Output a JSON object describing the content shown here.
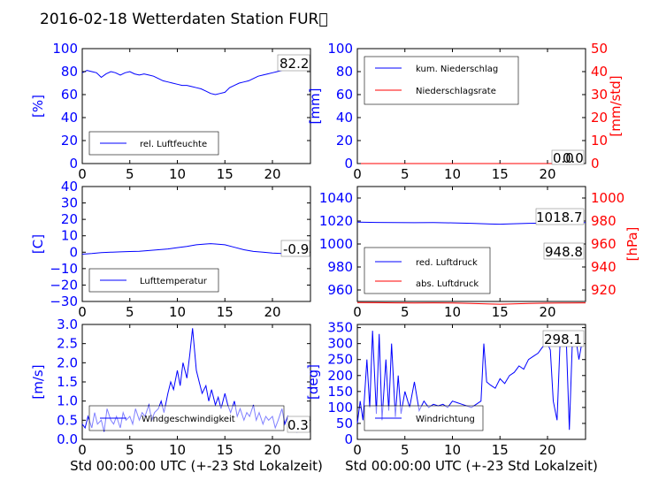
{
  "header": {
    "title": "2016-02-18 Wetterdaten Station FUR\u0000"
  },
  "colors": {
    "primary": "#0000ff",
    "secondary": "#ff0000",
    "frame": "#000000"
  },
  "chart_data": [
    {
      "type": "line",
      "ylabel": "[%]",
      "ylim": [
        0,
        100
      ],
      "yticks": [
        "0",
        "20",
        "40",
        "60",
        "80",
        "100"
      ],
      "xlim": [
        0,
        24
      ],
      "xticks": [
        "0",
        "5",
        "10",
        "15",
        "20"
      ],
      "legend": [
        "rel. Luftfeuchte"
      ],
      "annotation": "82.2",
      "series": [
        {
          "name": "rel. Luftfeuchte",
          "color": "#0000ff",
          "x": [
            0,
            0.5,
            1,
            1.5,
            2,
            2.5,
            3,
            3.5,
            4,
            4.5,
            5,
            5.5,
            6,
            6.5,
            7,
            7.5,
            8,
            8.5,
            9,
            9.5,
            10,
            10.5,
            11,
            11.5,
            12,
            12.5,
            13,
            13.5,
            14,
            14.5,
            15,
            15.5,
            16,
            16.5,
            17,
            17.5,
            18,
            18.5,
            19,
            19.5,
            20,
            20.5,
            21,
            21.5,
            22,
            22.5,
            23,
            23.5
          ],
          "y": [
            79,
            81,
            80,
            79,
            75,
            78,
            80,
            79,
            77,
            79,
            80,
            78,
            77,
            78,
            77,
            76,
            74,
            72,
            71,
            70,
            69,
            68,
            68,
            67,
            66,
            65,
            63,
            61,
            60,
            61,
            62,
            66,
            68,
            70,
            71,
            72,
            74,
            76,
            77,
            78,
            79,
            80,
            81,
            82,
            82,
            82,
            82,
            82
          ]
        }
      ]
    },
    {
      "type": "line",
      "ylabel": "[mm]",
      "ylabel2": "[mm/std]",
      "ylim": [
        0,
        100
      ],
      "ylim2": [
        0,
        50
      ],
      "yticks": [
        "0",
        "20",
        "40",
        "60",
        "80",
        "100"
      ],
      "yticks2": [
        "0",
        "10",
        "20",
        "30",
        "40",
        "50"
      ],
      "xlim": [
        0,
        24
      ],
      "xticks": [
        "0",
        "5",
        "10",
        "15",
        "20"
      ],
      "legend": [
        "kum. Niederschlag",
        "Niederschlagsrate"
      ],
      "annotation": "0.0",
      "annotation2": "0.0",
      "series": [
        {
          "name": "kum. Niederschlag",
          "color": "#0000ff",
          "x": [
            0,
            24
          ],
          "y": [
            0,
            0
          ]
        },
        {
          "name": "Niederschlagsrate",
          "color": "#ff0000",
          "x": [
            0,
            24
          ],
          "y": [
            0,
            0
          ]
        }
      ]
    },
    {
      "type": "line",
      "ylabel": "[C]",
      "ylim": [
        -30,
        40
      ],
      "yticks": [
        "−30",
        "−20",
        "−10",
        "0",
        "10",
        "20",
        "30",
        "40"
      ],
      "xlim": [
        0,
        24
      ],
      "xticks": [
        "0",
        "5",
        "10",
        "15",
        "20"
      ],
      "legend": [
        "Lufttemperatur"
      ],
      "annotation": "-0.9",
      "series": [
        {
          "name": "Lufttemperatur",
          "color": "#0000ff",
          "x": [
            0,
            1,
            2,
            3,
            4,
            5,
            6,
            7,
            8,
            9,
            10,
            11,
            12,
            13,
            13.5,
            14,
            15,
            16,
            17,
            18,
            19,
            20,
            21,
            22,
            23,
            23.8
          ],
          "y": [
            -1.2,
            -0.8,
            -0.2,
            0,
            0.2,
            0.4,
            0.6,
            1.0,
            1.5,
            2.0,
            2.8,
            3.5,
            4.5,
            5.0,
            5.2,
            5.0,
            4.5,
            3.0,
            1.5,
            0.5,
            0,
            -0.5,
            -0.8,
            -0.9,
            -0.9,
            -0.9
          ]
        }
      ]
    },
    {
      "type": "line",
      "ylabel": "",
      "ylabel2": "[hPa]",
      "ylim": [
        950,
        1050
      ],
      "ylim2": [
        910,
        1010
      ],
      "yticks": [
        "960",
        "980",
        "1000",
        "1020",
        "1040"
      ],
      "yticks2": [
        "920",
        "940",
        "960",
        "980",
        "1000"
      ],
      "xlim": [
        0,
        24
      ],
      "xticks": [
        "0",
        "5",
        "10",
        "15",
        "20"
      ],
      "legend": [
        "red. Luftdruck",
        "abs. Luftdruck"
      ],
      "annotation": "1018.7",
      "annotation2": "948.8",
      "series": [
        {
          "name": "red. Luftdruck",
          "color": "#0000ff",
          "x": [
            0,
            2,
            4,
            6,
            8,
            10,
            12,
            14,
            15,
            16,
            18,
            20,
            22,
            24
          ],
          "y": [
            1019,
            1018.8,
            1018.6,
            1018.5,
            1018.6,
            1018.4,
            1018,
            1017.4,
            1017.2,
            1017.5,
            1018,
            1018.3,
            1018.6,
            1018.7
          ]
        },
        {
          "name": "abs. Luftdruck",
          "color": "#ff0000",
          "x": [
            0,
            2,
            4,
            6,
            8,
            10,
            12,
            14,
            15,
            16,
            18,
            20,
            22,
            24
          ],
          "y": [
            949,
            948.9,
            948.8,
            948.7,
            948.8,
            948.6,
            948.3,
            947.8,
            947.6,
            947.8,
            948.2,
            948.5,
            948.7,
            948.8
          ]
        }
      ]
    },
    {
      "type": "line",
      "ylabel": "[m/s]",
      "ylim": [
        0,
        3
      ],
      "yticks": [
        "0.0",
        "0.5",
        "1.0",
        "1.5",
        "2.0",
        "2.5",
        "3.0"
      ],
      "xlim": [
        0,
        24
      ],
      "xticks": [
        "0",
        "5",
        "10",
        "15",
        "20"
      ],
      "xlabel": "Std 00:00:00 UTC (+-23 Std Lokalzeit)",
      "legend": [
        "Windgeschwindigkeit"
      ],
      "annotation": "0.3",
      "series": [
        {
          "name": "Windgeschwindigkeit",
          "color": "#0000ff",
          "x": [
            0,
            0.3,
            0.6,
            1,
            1.3,
            1.6,
            2,
            2.3,
            2.6,
            3,
            3.3,
            3.6,
            4,
            4.3,
            4.6,
            5,
            5.3,
            5.6,
            6,
            6.3,
            6.6,
            7,
            7.3,
            7.6,
            8,
            8.3,
            8.6,
            9,
            9.3,
            9.6,
            10,
            10.3,
            10.6,
            11,
            11.3,
            11.6,
            12,
            12.3,
            12.6,
            13,
            13.3,
            13.6,
            14,
            14.3,
            14.6,
            15,
            15.3,
            15.6,
            16,
            16.3,
            16.6,
            17,
            17.3,
            17.6,
            18,
            18.3,
            18.6,
            19,
            19.3,
            19.6,
            20,
            20.3,
            20.6,
            21,
            21.3,
            21.6,
            22,
            22.3,
            22.6,
            23,
            23.3,
            23.6
          ],
          "y": [
            0.4,
            0.3,
            0.6,
            0.3,
            0.7,
            0.4,
            0.5,
            0.2,
            0.8,
            0.5,
            0.4,
            0.6,
            0.3,
            0.7,
            0.5,
            0.6,
            0.4,
            0.8,
            0.5,
            0.7,
            0.6,
            0.9,
            0.5,
            0.7,
            0.8,
            1.0,
            0.7,
            1.2,
            1.5,
            1.3,
            1.8,
            1.4,
            2.0,
            1.6,
            2.2,
            2.9,
            1.8,
            1.5,
            1.2,
            1.4,
            1.0,
            1.3,
            0.9,
            1.1,
            0.8,
            1.2,
            0.9,
            0.7,
            1.0,
            0.6,
            0.8,
            0.5,
            0.7,
            0.6,
            0.9,
            0.5,
            0.7,
            0.4,
            0.6,
            0.5,
            0.6,
            0.3,
            0.5,
            0.8,
            0.4,
            0.6,
            0.3,
            0.5,
            0.2,
            0.4,
            0.3,
            0.3
          ]
        }
      ]
    },
    {
      "type": "line",
      "ylabel": "[deg]",
      "ylim": [
        0,
        360
      ],
      "yticks": [
        "0",
        "50",
        "100",
        "150",
        "200",
        "250",
        "300",
        "350"
      ],
      "xlim": [
        0,
        24
      ],
      "xticks": [
        "0",
        "5",
        "10",
        "15",
        "20"
      ],
      "xlabel": "Std 00:00:00 UTC (+-23 Std Lokalzeit)",
      "legend": [
        "Windrichtung"
      ],
      "annotation": "298.1",
      "series": [
        {
          "name": "Windrichtung",
          "color": "#0000ff",
          "x": [
            0,
            0.3,
            0.6,
            1,
            1.3,
            1.6,
            2,
            2.3,
            2.6,
            3,
            3.3,
            3.6,
            4,
            4.3,
            4.6,
            5,
            5.5,
            6,
            6.5,
            7,
            7.5,
            8,
            8.5,
            9,
            9.5,
            10,
            10.5,
            11,
            11.5,
            12,
            12.5,
            13,
            13.3,
            13.6,
            14,
            14.5,
            15,
            15.5,
            16,
            16.5,
            17,
            17.5,
            18,
            18.5,
            19,
            19.5,
            20,
            20.3,
            20.6,
            21,
            21.3,
            21.6,
            22,
            22.3,
            22.6,
            23,
            23.3,
            23.6
          ],
          "y": [
            50,
            120,
            60,
            250,
            100,
            340,
            80,
            330,
            60,
            250,
            90,
            300,
            70,
            200,
            80,
            150,
            100,
            180,
            90,
            120,
            100,
            110,
            105,
            110,
            100,
            120,
            115,
            110,
            105,
            100,
            110,
            120,
            300,
            180,
            170,
            160,
            190,
            175,
            200,
            210,
            230,
            220,
            250,
            260,
            270,
            290,
            300,
            280,
            120,
            60,
            290,
            300,
            290,
            30,
            300,
            310,
            250,
            300
          ]
        }
      ]
    }
  ]
}
